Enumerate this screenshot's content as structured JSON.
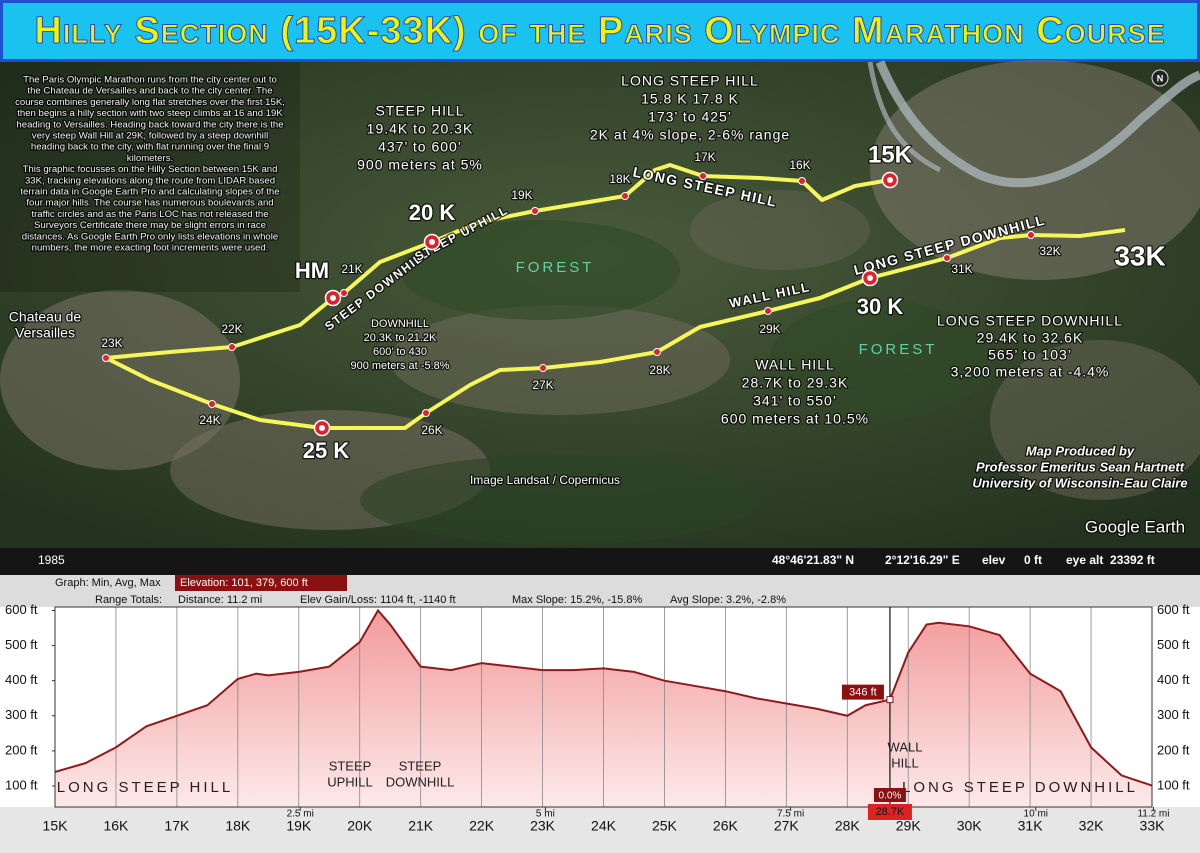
{
  "title": "Hilly Section (15K-33K) of the Paris Olympic Marathon Course",
  "map": {
    "description": [
      [
        "The Paris Olympic Marathon runs from the city center out to",
        "the Chateau de Versailles and back to the city center. The",
        "course combines generally long flat stretches over the first 15K,",
        "then begins a hilly section with two steep climbs at 16 and 19K",
        "heading to Versailles.  Heading back toward the city there is the",
        "very steep Wall Hill at 29K, followed by a steep downhill",
        "heading back to the city, with flat running over the final 9",
        "kilometers."
      ],
      [
        "This graphic focusses on the Hilly Section between 15K and",
        "33K, tracking elevations along the route from LIDAR based",
        "terrain data in Google Earth Pro and calculating slopes of the",
        "four major hills. The course has numerous boulevards and",
        "traffic circles and as the Paris LOC has not released the",
        "Surveyors Certificate there may be slight errors in race",
        "distances. As Google Earth Pro only lists elevations in whole",
        "numbers, the more exacting foot increments were used."
      ]
    ],
    "callouts": [
      [
        "LONG STEEP HILL",
        "15.8 K 17.8 K",
        "173’ to 425’",
        "2K at 4% slope, 2-6% range"
      ],
      [
        "STEEP HILL",
        "19.4K to 20.3K",
        "437’ to 600’",
        "900 meters at 5%"
      ],
      [
        "DOWNHILL",
        "20.3K to 21.2K",
        "600’ to 430",
        "900 meters at -5.8%"
      ],
      [
        "WALL HILL",
        "28.7K to 29.3K",
        "341’ to 550’",
        "600 meters at 10.5%"
      ],
      [
        "LONG STEEP DOWNHILL",
        "29.4K to 32.6K",
        "565’ to 103’",
        "3,200 meters at -4.4%"
      ]
    ],
    "route_labels": [
      "LONG STEEP HILL",
      "STEEP DOWNHILL",
      "STEEP UPHILL",
      "WALL HILL",
      "LONG STEEP DOWNHILL"
    ],
    "forest_labels": [
      "FOREST",
      "FOREST"
    ],
    "km_markers": [
      "16K",
      "17K",
      "18K",
      "19K",
      "21K",
      "22K",
      "23K",
      "24K",
      "26K",
      "27K",
      "28K",
      "29K",
      "31K",
      "32K"
    ],
    "major_markers": [
      "15K",
      "20 K",
      "HM",
      "25 K",
      "30 K",
      "33K"
    ],
    "place": [
      "Chateau de",
      "Versailles"
    ],
    "imagery": "Image Landsat / Copernicus",
    "credit": [
      "Map Produced by",
      "Professor Emeritus Sean Hartnett",
      "University of Wisconsin-Eau Claire"
    ],
    "logo": "Google Earth",
    "north": "N",
    "status": {
      "year": "1985",
      "lat": "48°46'21.83\" N",
      "lon": "2°12'16.29\" E",
      "elev_label": "elev",
      "elev": "0 ft",
      "eye_alt": "eye alt  23392 ft"
    }
  },
  "chart_data": {
    "type": "area",
    "header": {
      "graph": "Graph: Min, Avg, Max",
      "elevation": "Elevation: 101, 379, 600 ft",
      "range": "Range Totals:",
      "distance": "Distance: 11.2 mi",
      "gain_loss": "Elev Gain/Loss: 1104 ft, -1140 ft",
      "max_slope": "Max Slope: 15.2%, -15.8%",
      "avg_slope": "Avg Slope: 3.2%, -2.8%"
    },
    "x": [
      15,
      15.5,
      16,
      16.5,
      17,
      17.5,
      18,
      18.3,
      18.5,
      19,
      19.5,
      20,
      20.3,
      20.5,
      21,
      21.5,
      22,
      22.5,
      23,
      23.5,
      24,
      24.5,
      25,
      25.5,
      26,
      26.5,
      27,
      27.5,
      28,
      28.3,
      28.7,
      29,
      29.3,
      29.5,
      30,
      30.5,
      31,
      31.5,
      32,
      32.5,
      33
    ],
    "values": [
      140,
      165,
      210,
      270,
      300,
      330,
      405,
      420,
      415,
      425,
      440,
      510,
      600,
      560,
      440,
      430,
      450,
      440,
      430,
      430,
      435,
      425,
      400,
      385,
      370,
      350,
      335,
      320,
      300,
      330,
      346,
      480,
      560,
      565,
      555,
      530,
      420,
      370,
      210,
      130,
      101
    ],
    "color": "#8e1b1b",
    "fill": "#f2a7a7",
    "xlim": [
      15,
      33
    ],
    "xticks": [
      {
        "value": 15,
        "label": "15K"
      },
      {
        "value": 16,
        "label": "16K"
      },
      {
        "value": 17,
        "label": "17K"
      },
      {
        "value": 18,
        "label": "18K"
      },
      {
        "value": 19,
        "label": "19K"
      },
      {
        "value": 20,
        "label": "20K"
      },
      {
        "value": 21,
        "label": "21K"
      },
      {
        "value": 22,
        "label": "22K"
      },
      {
        "value": 23,
        "label": "23K"
      },
      {
        "value": 24,
        "label": "24K"
      },
      {
        "value": 25,
        "label": "25K"
      },
      {
        "value": 26,
        "label": "26K"
      },
      {
        "value": 27,
        "label": "27K"
      },
      {
        "value": 28,
        "label": "28K"
      },
      {
        "value": 29,
        "label": "29K"
      },
      {
        "value": 30,
        "label": "30K"
      },
      {
        "value": 31,
        "label": "31K"
      },
      {
        "value": 32,
        "label": "32K"
      },
      {
        "value": 33,
        "label": "33K"
      }
    ],
    "x2lim": [
      0,
      11.185
    ],
    "x2ticks": [
      {
        "value": 2.5,
        "label": "2.5 mi"
      },
      {
        "value": 5,
        "label": "5 mi"
      },
      {
        "value": 7.5,
        "label": "7.5 mi"
      },
      {
        "value": 10,
        "label": "10 mi"
      },
      {
        "value": 11.2,
        "label": "11.2 mi"
      }
    ],
    "ylim": [
      40,
      610
    ],
    "yticks": [
      {
        "value": 100,
        "label": "100 ft"
      },
      {
        "value": 200,
        "label": "200 ft"
      },
      {
        "value": 300,
        "label": "300 ft"
      },
      {
        "value": 400,
        "label": "400 ft"
      },
      {
        "value": 500,
        "label": "500 ft"
      },
      {
        "value": 600,
        "label": "600 ft"
      }
    ],
    "grid": true,
    "annotations": [
      [
        "LONG STEEP HILL"
      ],
      [
        "STEEP",
        "UPHILL"
      ],
      [
        "STEEP",
        "DOWNHILL"
      ],
      [
        "WALL",
        "HILL"
      ],
      [
        "LONG STEEP DOWNHILL"
      ]
    ],
    "cursor": {
      "x": 28.7,
      "x_label": "28.7K",
      "value": 346,
      "label": "346 ft",
      "slope": "0.0%"
    }
  }
}
